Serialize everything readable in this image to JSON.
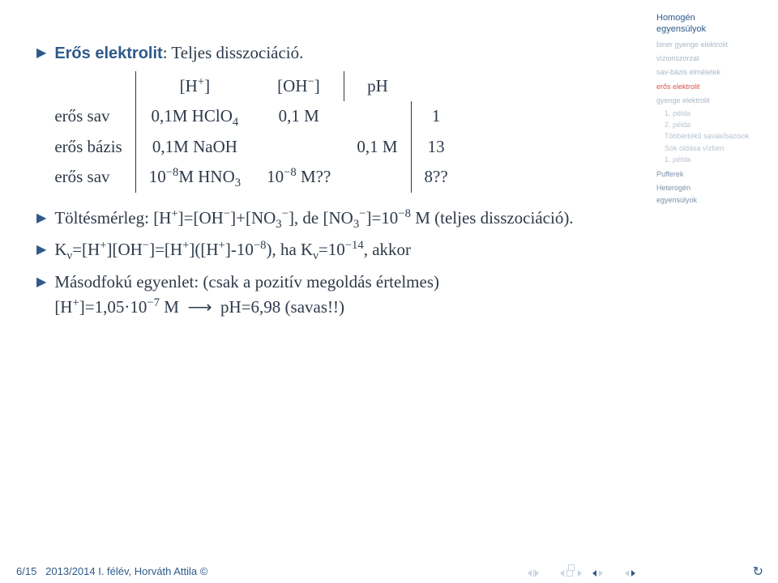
{
  "main": {
    "bullets": [
      {
        "label": "Erős elektrolit",
        "rest": ": Teljes disszociáció."
      }
    ],
    "table": {
      "headers": [
        "",
        "[H<sup>+</sup>]",
        "[OH<sup>−</sup>]",
        "pH"
      ],
      "rows": [
        [
          "erős sav",
          "0,1M HClO<sub>4</sub>",
          "0,1 M",
          "",
          "1"
        ],
        [
          "erős bázis",
          "0,1M NaOH",
          "",
          "0,1 M",
          "13"
        ],
        [
          "erős sav",
          "10<sup>−8</sup>M HNO<sub>3</sub>",
          "10<sup>−8</sup> M??",
          "",
          "8??"
        ]
      ]
    },
    "b2": "Töltésmérleg: [H<sup>+</sup>]=[OH<sup>−</sup>]+[NO<sub>3</sub><sup>−</sup>], de [NO<sub>3</sub><sup>−</sup>]=10<sup>−8</sup> M (teljes disszociáció).",
    "b3": "K<sub>ν</sub>=[H<sup>+</sup>][OH<sup>−</sup>]=[H<sup>+</sup>]([H<sup>+</sup>]-10<sup>−8</sup>), ha K<sub>ν</sub>=10<sup>−14</sup>, akkor",
    "b4": "Másodfokú egyenlet: (csak a pozitív megoldás értelmes) [H<sup>+</sup>]=1,05·10<sup>−7</sup> M ⟶ pH=6,98 (savas!!)"
  },
  "sidebar": {
    "title1": "Homogén",
    "title2": "egyensúlyok",
    "items": [
      {
        "txt": "biner gyenge elektrolit",
        "cls": "lv1"
      },
      {
        "txt": "vízionszorzat",
        "cls": "lv1"
      },
      {
        "txt": "sav-bázis elméletek",
        "cls": "lv1"
      },
      {
        "txt": "erős elektrolit",
        "cls": "lv1 active"
      },
      {
        "txt": "gyenge elektrolit",
        "cls": "lv1"
      },
      {
        "txt": "1. példa",
        "cls": "lv2"
      },
      {
        "txt": "2. példa",
        "cls": "lv2"
      },
      {
        "txt": "Többértékű savak/bázisok",
        "cls": "lv2"
      },
      {
        "txt": "Sók oldása vízben",
        "cls": "lv2"
      },
      {
        "txt": "1. példa",
        "cls": "lv2"
      },
      {
        "txt": "Pufferek",
        "cls": "lv1b"
      },
      {
        "txt": "Heterogén",
        "cls": "lv1b",
        "nomargin": true
      },
      {
        "txt": "egyensúlyok",
        "cls": "lv1b"
      }
    ]
  },
  "footer": {
    "page": "6/15",
    "text": "2013/2014 I. félév, Horváth Attila ©"
  },
  "colors": {
    "accent": "#2e5a8a",
    "muted": "#b8c4d0",
    "alert": "#d9534f"
  }
}
